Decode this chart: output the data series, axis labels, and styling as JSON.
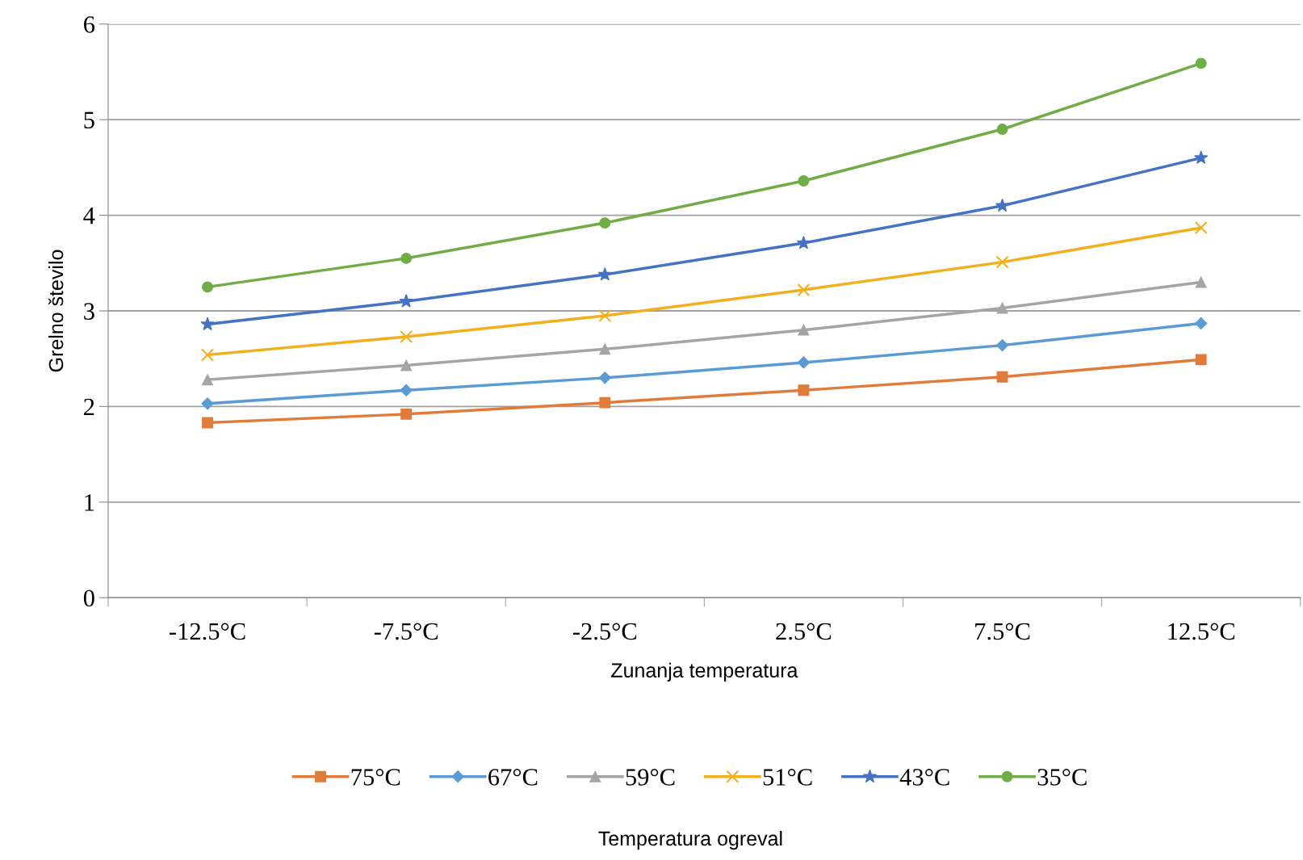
{
  "chart_data": {
    "type": "line",
    "xlabel": "Zunanja temperatura",
    "ylabel": "Grelno število",
    "legend_title": "Temperatura ogreval",
    "categories": [
      "-12.5°C",
      "-7.5°C",
      "-2.5°C",
      "2.5°C",
      "7.5°C",
      "12.5°C"
    ],
    "ylim": [
      0,
      6
    ],
    "yticks": [
      0,
      1,
      2,
      3,
      4,
      5,
      6
    ],
    "grid": "y",
    "legend": "bottom",
    "series": [
      {
        "name": "75°C",
        "color": "#e07b39",
        "marker": "square",
        "values": [
          1.83,
          1.92,
          2.04,
          2.17,
          2.31,
          2.49
        ]
      },
      {
        "name": "67°C",
        "color": "#5b9bd5",
        "marker": "diamond",
        "values": [
          2.03,
          2.17,
          2.3,
          2.46,
          2.64,
          2.87
        ]
      },
      {
        "name": "59°C",
        "color": "#a5a5a5",
        "marker": "triangle",
        "values": [
          2.28,
          2.43,
          2.6,
          2.8,
          3.03,
          3.3
        ]
      },
      {
        "name": "51°C",
        "color": "#f2b01e",
        "marker": "cross",
        "values": [
          2.54,
          2.73,
          2.95,
          3.22,
          3.51,
          3.87
        ]
      },
      {
        "name": "43°C",
        "color": "#4472c4",
        "marker": "star",
        "values": [
          2.86,
          3.1,
          3.38,
          3.71,
          4.1,
          4.6
        ]
      },
      {
        "name": "35°C",
        "color": "#70ad47",
        "marker": "circle",
        "values": [
          3.25,
          3.55,
          3.92,
          4.36,
          4.9,
          5.59
        ]
      }
    ]
  }
}
